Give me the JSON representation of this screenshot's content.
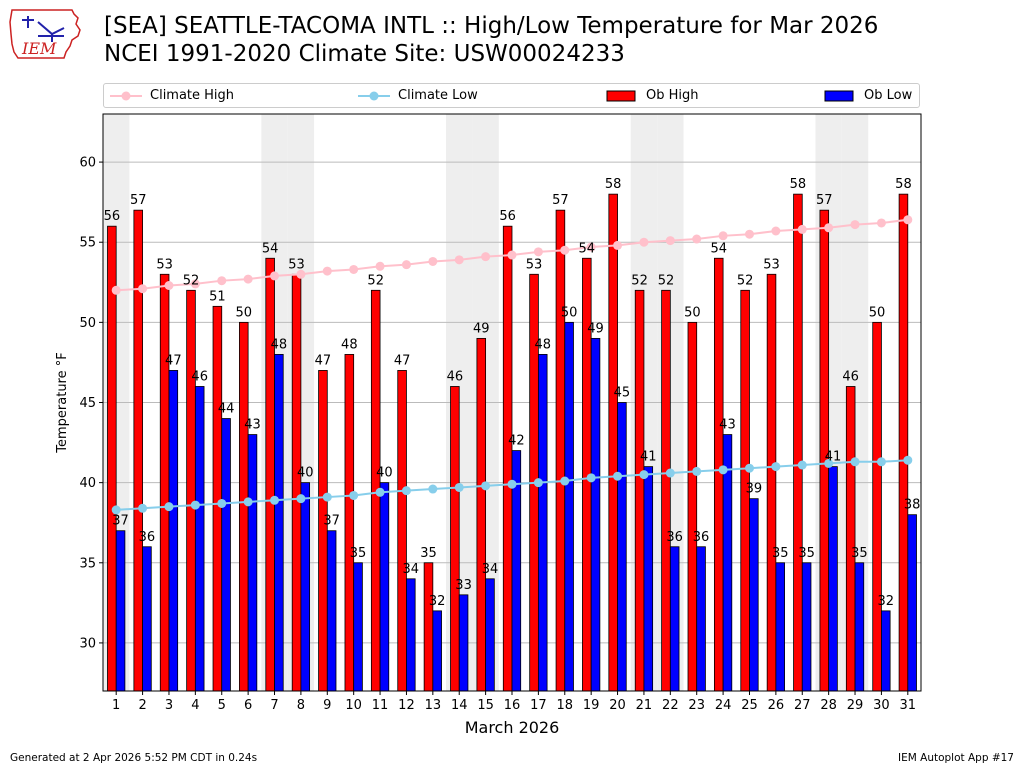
{
  "title": {
    "line1": "[SEA] SEATTLE-TACOMA INTL :: High/Low Temperature for Mar 2026",
    "line2": "NCEI 1991-2020 Climate Site: USW00024233"
  },
  "logo": {
    "text": "IEM",
    "icon": "iowa-state-outline-logo"
  },
  "legend": {
    "climate_high": "Climate High",
    "climate_low": "Climate Low",
    "ob_high": "Ob High",
    "ob_low": "Ob Low"
  },
  "colors": {
    "ob_high": "#ff0000",
    "ob_low": "#0000ff",
    "climate_high": "#ffc0cb",
    "climate_low": "#87ceeb",
    "weekend_shade": "#eeeeee",
    "grid": "#bbbbbb"
  },
  "footer": {
    "generated": "Generated at 2 Apr 2026 5:52 PM CDT in 0.24s",
    "app": "IEM Autoplot App #17"
  },
  "chart_data": {
    "type": "bar",
    "xlabel": "March 2026",
    "ylabel": "Temperature °F",
    "ylim": [
      27,
      63
    ],
    "yticks": [
      30,
      35,
      40,
      45,
      50,
      55,
      60
    ],
    "grid": true,
    "legend_position": "top",
    "categories": [
      "1",
      "2",
      "3",
      "4",
      "5",
      "6",
      "7",
      "8",
      "9",
      "10",
      "11",
      "12",
      "13",
      "14",
      "15",
      "16",
      "17",
      "18",
      "19",
      "20",
      "21",
      "22",
      "23",
      "24",
      "25",
      "26",
      "27",
      "28",
      "29",
      "30",
      "31"
    ],
    "shaded_days": [
      1,
      7,
      8,
      14,
      15,
      21,
      22,
      28,
      29
    ],
    "series": [
      {
        "name": "Ob High",
        "kind": "bar",
        "values": [
          56,
          57,
          53,
          52,
          51,
          50,
          54,
          53,
          47,
          48,
          52,
          47,
          35,
          46,
          49,
          56,
          53,
          57,
          54,
          58,
          52,
          52,
          50,
          54,
          52,
          53,
          58,
          57,
          46,
          50,
          58
        ]
      },
      {
        "name": "Ob Low",
        "kind": "bar",
        "values": [
          37,
          36,
          47,
          46,
          44,
          43,
          48,
          40,
          37,
          35,
          40,
          34,
          32,
          33,
          34,
          42,
          48,
          50,
          49,
          45,
          41,
          36,
          36,
          43,
          39,
          35,
          35,
          41,
          35,
          32,
          38
        ]
      },
      {
        "name": "Climate High",
        "kind": "line",
        "values": [
          52.0,
          52.1,
          52.3,
          52.4,
          52.6,
          52.7,
          52.9,
          53.0,
          53.2,
          53.3,
          53.5,
          53.6,
          53.8,
          53.9,
          54.1,
          54.2,
          54.4,
          54.5,
          54.7,
          54.8,
          55.0,
          55.1,
          55.2,
          55.4,
          55.5,
          55.7,
          55.8,
          55.9,
          56.1,
          56.2,
          56.4
        ]
      },
      {
        "name": "Climate Low",
        "kind": "line",
        "values": [
          38.3,
          38.4,
          38.5,
          38.6,
          38.7,
          38.8,
          38.9,
          39.0,
          39.1,
          39.2,
          39.4,
          39.5,
          39.6,
          39.7,
          39.8,
          39.9,
          40.0,
          40.1,
          40.3,
          40.4,
          40.5,
          40.6,
          40.7,
          40.8,
          40.9,
          41.0,
          41.1,
          41.2,
          41.3,
          41.3,
          41.4
        ]
      }
    ]
  }
}
